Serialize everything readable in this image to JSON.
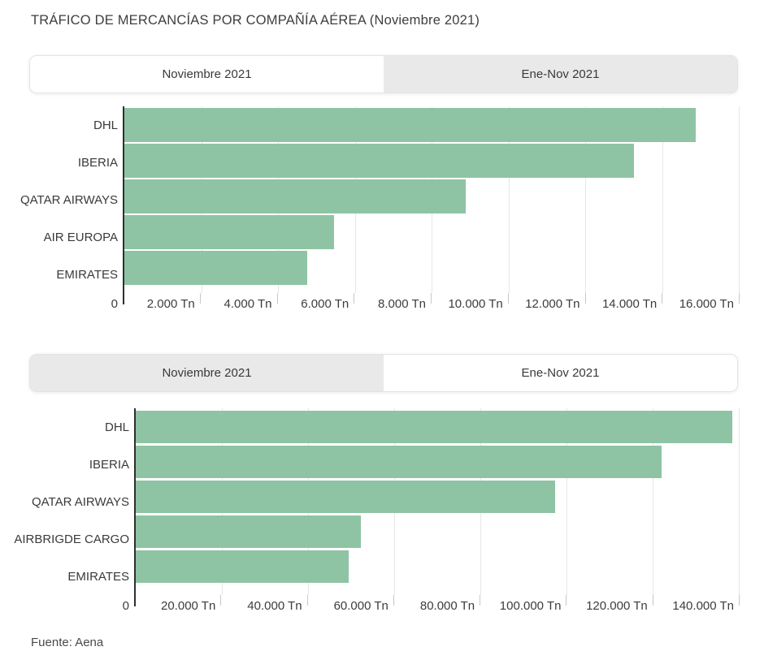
{
  "page": {
    "title": "TRÁFICO DE MERCANCÍAS POR COMPAÑÍA AÉREA (Noviembre 2021)",
    "source": "Fuente: Aena"
  },
  "colors": {
    "bar_green": "#8EC4A4",
    "tab_inactive_bg": "#E9E9E9",
    "text": "#3C3C3C",
    "gridline": "#E7E7E7",
    "axis_line": "#2F2F2F"
  },
  "panels": [
    {
      "tabs": [
        {
          "label": "Noviembre 2021",
          "active": true
        },
        {
          "label": "Ene-Nov 2021",
          "active": false
        }
      ]
    },
    {
      "tabs": [
        {
          "label": "Noviembre 2021",
          "active": false
        },
        {
          "label": "Ene-Nov 2021",
          "active": true
        }
      ]
    }
  ],
  "chart_data": [
    {
      "type": "bar",
      "orientation": "horizontal",
      "title": "Noviembre 2021",
      "unit": "Tn",
      "categories": [
        "DHL",
        "IBERIA",
        "QATAR AIRWAYS",
        "AIR EUROPA",
        "EMIRATES"
      ],
      "values": [
        14880,
        13280,
        8890,
        5470,
        4760
      ],
      "xlim": [
        0,
        16000
      ],
      "xticks": [
        0,
        2000,
        4000,
        6000,
        8000,
        10000,
        12000,
        14000,
        16000
      ],
      "xtick_labels": [
        "0",
        "2.000 Tn",
        "4.000 Tn",
        "6.000 Tn",
        "8.000 Tn",
        "10.000 Tn",
        "12.000 Tn",
        "14.000 Tn",
        "16.000 Tn"
      ],
      "grid": true,
      "legend": "none"
    },
    {
      "type": "bar",
      "orientation": "horizontal",
      "title": "Ene-Nov 2021",
      "unit": "Tn",
      "categories": [
        "DHL",
        "IBERIA",
        "QATAR AIRWAYS",
        "AIRBRIGDE CARGO",
        "EMIRATES"
      ],
      "values": [
        138400,
        122100,
        97300,
        52300,
        49400
      ],
      "xlim": [
        0,
        140000
      ],
      "xticks": [
        0,
        20000,
        40000,
        60000,
        80000,
        100000,
        120000,
        140000
      ],
      "xtick_labels": [
        "0",
        "20.000 Tn",
        "40.000 Tn",
        "60.000 Tn",
        "80.000 Tn",
        "100.000 Tn",
        "120.000 Tn",
        "140.000 Tn"
      ],
      "grid": true,
      "legend": "none"
    }
  ]
}
